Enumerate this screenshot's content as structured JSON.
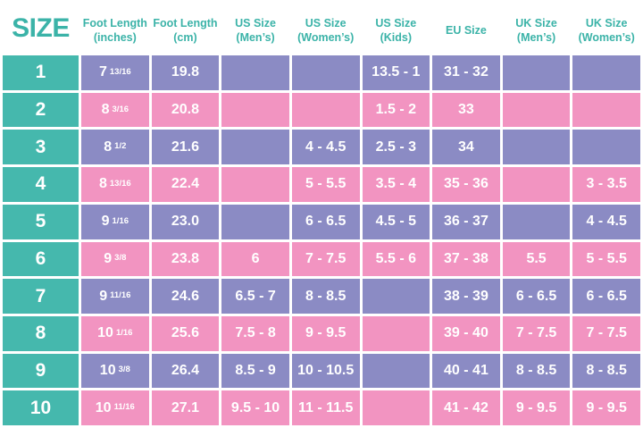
{
  "colors": {
    "teal": "#45b8ad",
    "purple": "#8b8bc4",
    "pink": "#f294c1",
    "header_text": "#3bb3a8",
    "cell_text": "#ffffff",
    "grid_line": "#ffffff"
  },
  "table": {
    "size_header": "SIZE",
    "columns": [
      {
        "line1": "Foot Length",
        "line2": "(inches)"
      },
      {
        "line1": "Foot Length",
        "line2": "(cm)"
      },
      {
        "line1": "US Size",
        "line2": "(Men’s)"
      },
      {
        "line1": "US Size",
        "line2": "(Women’s)"
      },
      {
        "line1": "US Size",
        "line2": "(Kids)"
      },
      {
        "line1": "EU Size",
        "line2": ""
      },
      {
        "line1": "UK Size",
        "line2": "(Men’s)"
      },
      {
        "line1": "UK Size",
        "line2": "(Women’s)"
      }
    ],
    "rows": [
      {
        "size": "1",
        "foot_inches": {
          "base": "7",
          "frac": "13/16"
        },
        "foot_cm": "19.8",
        "us_mens": "",
        "us_womens": "",
        "us_kids": "13.5 - 1",
        "eu": "31 - 32",
        "uk_mens": "",
        "uk_womens": ""
      },
      {
        "size": "2",
        "foot_inches": {
          "base": "8",
          "frac": "3/16"
        },
        "foot_cm": "20.8",
        "us_mens": "",
        "us_womens": "",
        "us_kids": "1.5 - 2",
        "eu": "33",
        "uk_mens": "",
        "uk_womens": ""
      },
      {
        "size": "3",
        "foot_inches": {
          "base": "8",
          "frac": "1/2"
        },
        "foot_cm": "21.6",
        "us_mens": "",
        "us_womens": "4 - 4.5",
        "us_kids": "2.5 - 3",
        "eu": "34",
        "uk_mens": "",
        "uk_womens": ""
      },
      {
        "size": "4",
        "foot_inches": {
          "base": "8",
          "frac": "13/16"
        },
        "foot_cm": "22.4",
        "us_mens": "",
        "us_womens": "5 - 5.5",
        "us_kids": "3.5 - 4",
        "eu": "35 - 36",
        "uk_mens": "",
        "uk_womens": "3 - 3.5"
      },
      {
        "size": "5",
        "foot_inches": {
          "base": "9",
          "frac": "1/16"
        },
        "foot_cm": "23.0",
        "us_mens": "",
        "us_womens": "6 - 6.5",
        "us_kids": "4.5 - 5",
        "eu": "36 - 37",
        "uk_mens": "",
        "uk_womens": "4 - 4.5"
      },
      {
        "size": "6",
        "foot_inches": {
          "base": "9",
          "frac": "3/8"
        },
        "foot_cm": "23.8",
        "us_mens": "6",
        "us_womens": "7 - 7.5",
        "us_kids": "5.5 - 6",
        "eu": "37 - 38",
        "uk_mens": "5.5",
        "uk_womens": "5 - 5.5"
      },
      {
        "size": "7",
        "foot_inches": {
          "base": "9",
          "frac": "11/16"
        },
        "foot_cm": "24.6",
        "us_mens": "6.5 - 7",
        "us_womens": "8 - 8.5",
        "us_kids": "",
        "eu": "38 - 39",
        "uk_mens": "6 - 6.5",
        "uk_womens": "6 - 6.5"
      },
      {
        "size": "8",
        "foot_inches": {
          "base": "10",
          "frac": "1/16"
        },
        "foot_cm": "25.6",
        "us_mens": "7.5 - 8",
        "us_womens": "9 - 9.5",
        "us_kids": "",
        "eu": "39 - 40",
        "uk_mens": "7 - 7.5",
        "uk_womens": "7 - 7.5"
      },
      {
        "size": "9",
        "foot_inches": {
          "base": "10",
          "frac": "3/8"
        },
        "foot_cm": "26.4",
        "us_mens": "8.5 - 9",
        "us_womens": "10 - 10.5",
        "us_kids": "",
        "eu": "40 - 41",
        "uk_mens": "8 - 8.5",
        "uk_womens": "8 - 8.5"
      },
      {
        "size": "10",
        "foot_inches": {
          "base": "10",
          "frac": "11/16"
        },
        "foot_cm": "27.1",
        "us_mens": "9.5 - 10",
        "us_womens": "11 - 11.5",
        "us_kids": "",
        "eu": "41 - 42",
        "uk_mens": "9 - 9.5",
        "uk_womens": "9 - 9.5"
      }
    ]
  },
  "chart_data": {
    "type": "table",
    "title": "SIZE",
    "columns": [
      "SIZE",
      "Foot Length (inches)",
      "Foot Length (cm)",
      "US Size (Men’s)",
      "US Size (Women’s)",
      "US Size (Kids)",
      "EU Size",
      "UK Size (Men’s)",
      "UK Size (Women’s)"
    ],
    "rows": [
      [
        "1",
        "7 13/16",
        "19.8",
        "",
        "",
        "13.5 - 1",
        "31 - 32",
        "",
        ""
      ],
      [
        "2",
        "8 3/16",
        "20.8",
        "",
        "",
        "1.5 - 2",
        "33",
        "",
        ""
      ],
      [
        "3",
        "8 1/2",
        "21.6",
        "",
        "4 - 4.5",
        "2.5 - 3",
        "34",
        "",
        ""
      ],
      [
        "4",
        "8 13/16",
        "22.4",
        "",
        "5 - 5.5",
        "3.5 - 4",
        "35 - 36",
        "",
        "3 - 3.5"
      ],
      [
        "5",
        "9 1/16",
        "23.0",
        "",
        "6 - 6.5",
        "4.5 - 5",
        "36 - 37",
        "",
        "4 - 4.5"
      ],
      [
        "6",
        "9 3/8",
        "23.8",
        "6",
        "7 - 7.5",
        "5.5 - 6",
        "37 - 38",
        "5.5",
        "5 - 5.5"
      ],
      [
        "7",
        "9 11/16",
        "24.6",
        "6.5 - 7",
        "8 - 8.5",
        "",
        "38 - 39",
        "6 - 6.5",
        "6 - 6.5"
      ],
      [
        "8",
        "10 1/16",
        "25.6",
        "7.5 - 8",
        "9 - 9.5",
        "",
        "39 - 40",
        "7 - 7.5",
        "7 - 7.5"
      ],
      [
        "9",
        "10 3/8",
        "26.4",
        "8.5 - 9",
        "10 - 10.5",
        "",
        "40 - 41",
        "8 - 8.5",
        "8 - 8.5"
      ],
      [
        "10",
        "10 11/16",
        "27.1",
        "9.5 - 10",
        "11 - 11.5",
        "",
        "41 - 42",
        "9 - 9.5",
        "9 - 9.5"
      ]
    ]
  }
}
